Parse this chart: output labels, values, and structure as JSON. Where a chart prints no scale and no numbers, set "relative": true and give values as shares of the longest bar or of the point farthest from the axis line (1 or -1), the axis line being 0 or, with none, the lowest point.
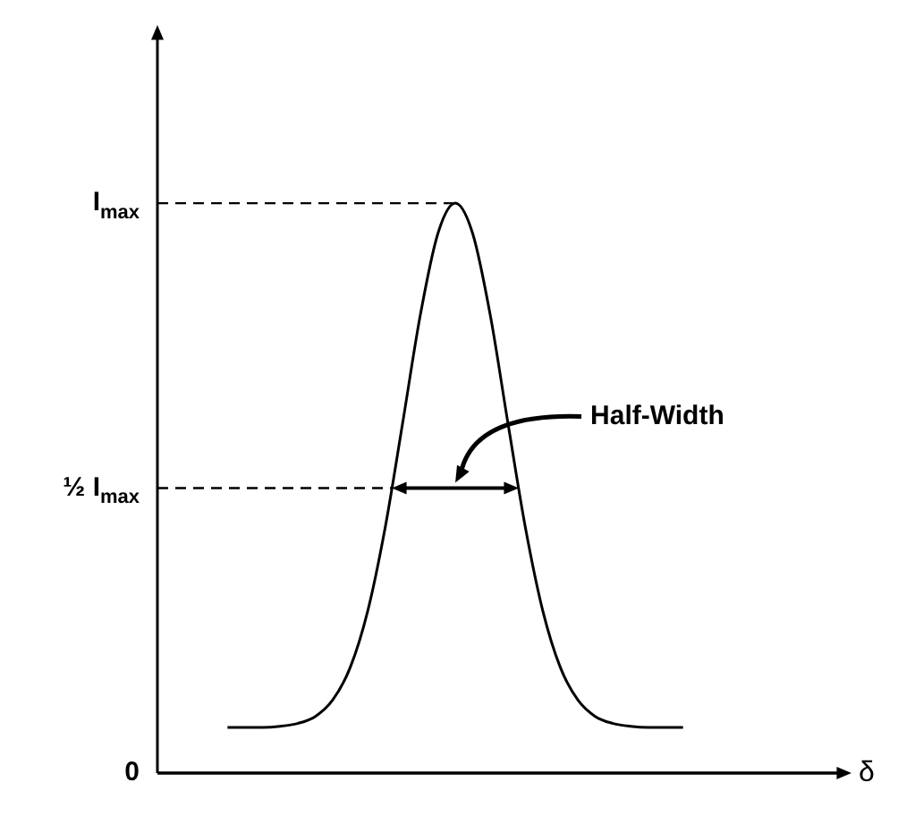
{
  "chart_data": {
    "type": "line",
    "xlabel": "δ",
    "relative": true,
    "categories": [
      null,
      null,
      null,
      null,
      null,
      null,
      null,
      null,
      null,
      null,
      null,
      null,
      null,
      null,
      null,
      null,
      null,
      null,
      null,
      null,
      null,
      null,
      null,
      null,
      null,
      null,
      null,
      null,
      null,
      null,
      null,
      null,
      null,
      null,
      null,
      null,
      null,
      null,
      null,
      null
    ],
    "values": [
      null,
      null,
      null,
      null,
      0.08,
      0.08,
      0.08,
      0.082,
      0.087,
      0.099,
      0.128,
      0.185,
      0.284,
      0.431,
      0.615,
      0.803,
      0.946,
      1,
      0.946,
      0.803,
      0.615,
      0.431,
      0.284,
      0.185,
      0.128,
      0.099,
      0.087,
      0.082,
      0.08,
      0.08,
      0.08,
      null,
      null,
      null,
      null,
      null,
      null,
      null,
      null,
      null
    ],
    "color": "#000000",
    "ref_lines": [
      {
        "axis": "y",
        "value": 1,
        "line_style": "dashed",
        "label": "I$_{max}$"
      },
      {
        "axis": "y",
        "value": 0.5,
        "line_style": "dashed",
        "label": "½ I$_{max}$"
      },
      {
        "axis": "y",
        "value": 0,
        "line_style": "solid",
        "label": "0"
      }
    ],
    "annotations": [
      "Half-Width"
    ]
  }
}
